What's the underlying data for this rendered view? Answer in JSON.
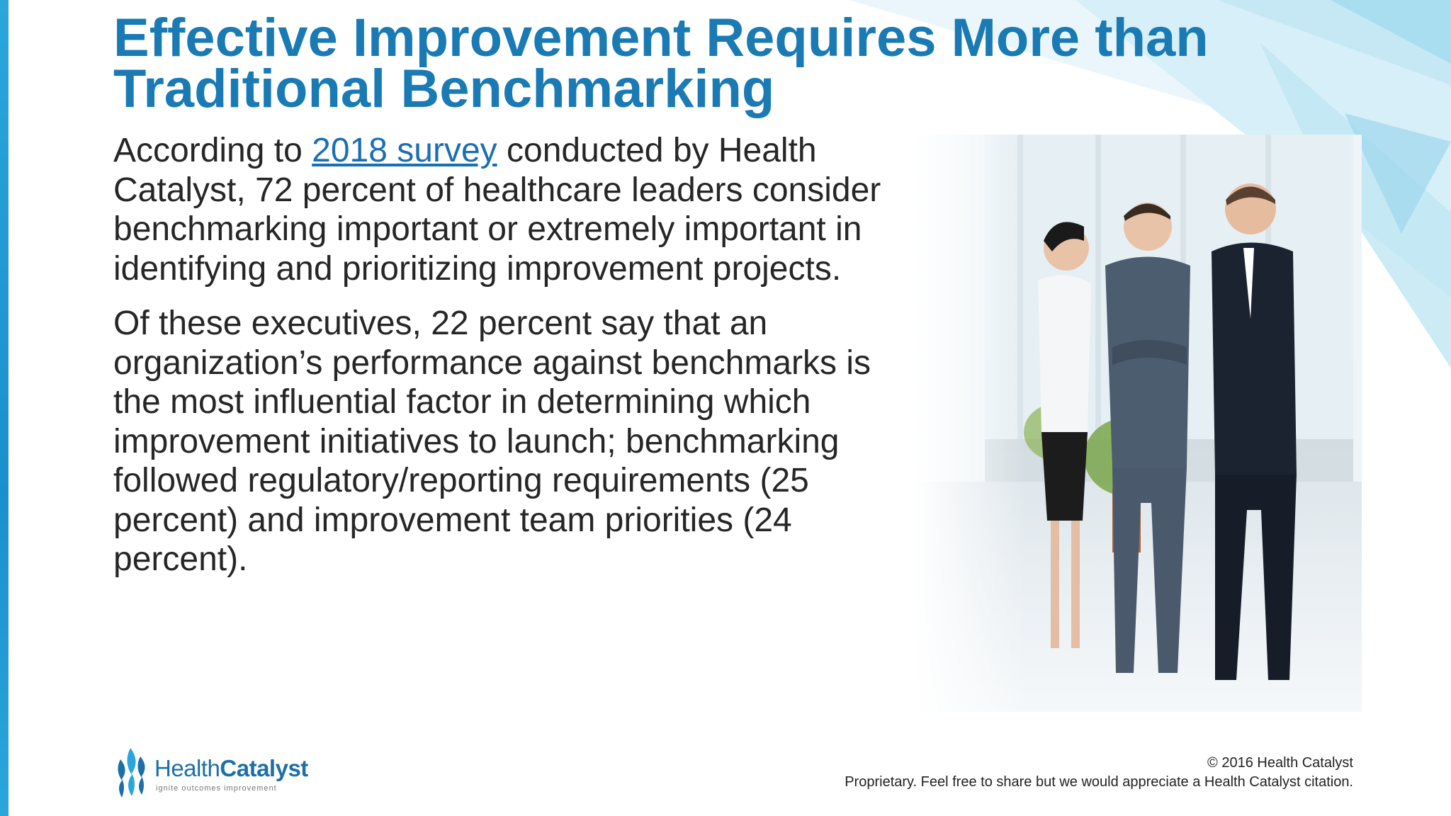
{
  "slide": {
    "title_line1": "Effective Improvement Requires More than",
    "title_line2": "Traditional Benchmarking",
    "para1": {
      "before": "According to ",
      "link": "2018 survey",
      "after": " conducted by Health Catalyst, 72 percent of healthcare leaders consider benchmarking important or extremely important in identifying and prioritizing improvement projects."
    },
    "para2": "Of these executives, 22 percent say that an organization’s performance against benchmarks is the most influential factor in determining which improvement initiatives to launch; benchmarking followed regulatory/reporting requirements (25 percent) and improvement team priorities (24 percent)."
  },
  "logo": {
    "name_part1": "Health",
    "name_part2": "Catalyst",
    "tagline": "ignite outcomes improvement"
  },
  "footer": {
    "copyright": "© 2016 Health Catalyst",
    "notice": "Proprietary. Feel free to share but we would appreciate a Health Catalyst citation."
  },
  "colors": {
    "title": "#1a7ab4",
    "body_text": "#262626",
    "link": "#1a6fb3",
    "accent_bar": "#2aa6dd"
  }
}
